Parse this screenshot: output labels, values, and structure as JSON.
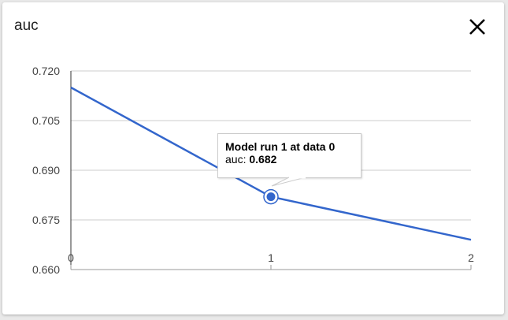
{
  "dialog": {
    "title": "auc",
    "close_icon": "close-icon"
  },
  "tooltip": {
    "title": "Model run 1 at data 0",
    "label": "auc:",
    "value": "0.682"
  },
  "colors": {
    "series": "#3366cc",
    "grid": "#cccccc",
    "axis": "#333333"
  },
  "chart_data": {
    "type": "line",
    "title": "auc",
    "x": [
      0,
      1,
      2
    ],
    "series": [
      {
        "values": [
          0.715,
          0.682,
          0.669
        ]
      }
    ],
    "xticks": [
      "0",
      "1",
      "2"
    ],
    "yticks": [
      "0.660",
      "0.675",
      "0.690",
      "0.705",
      "0.720"
    ],
    "ylim": [
      0.66,
      0.72
    ],
    "xlim": [
      0,
      2
    ],
    "grid": true,
    "highlighted_point": 1
  }
}
